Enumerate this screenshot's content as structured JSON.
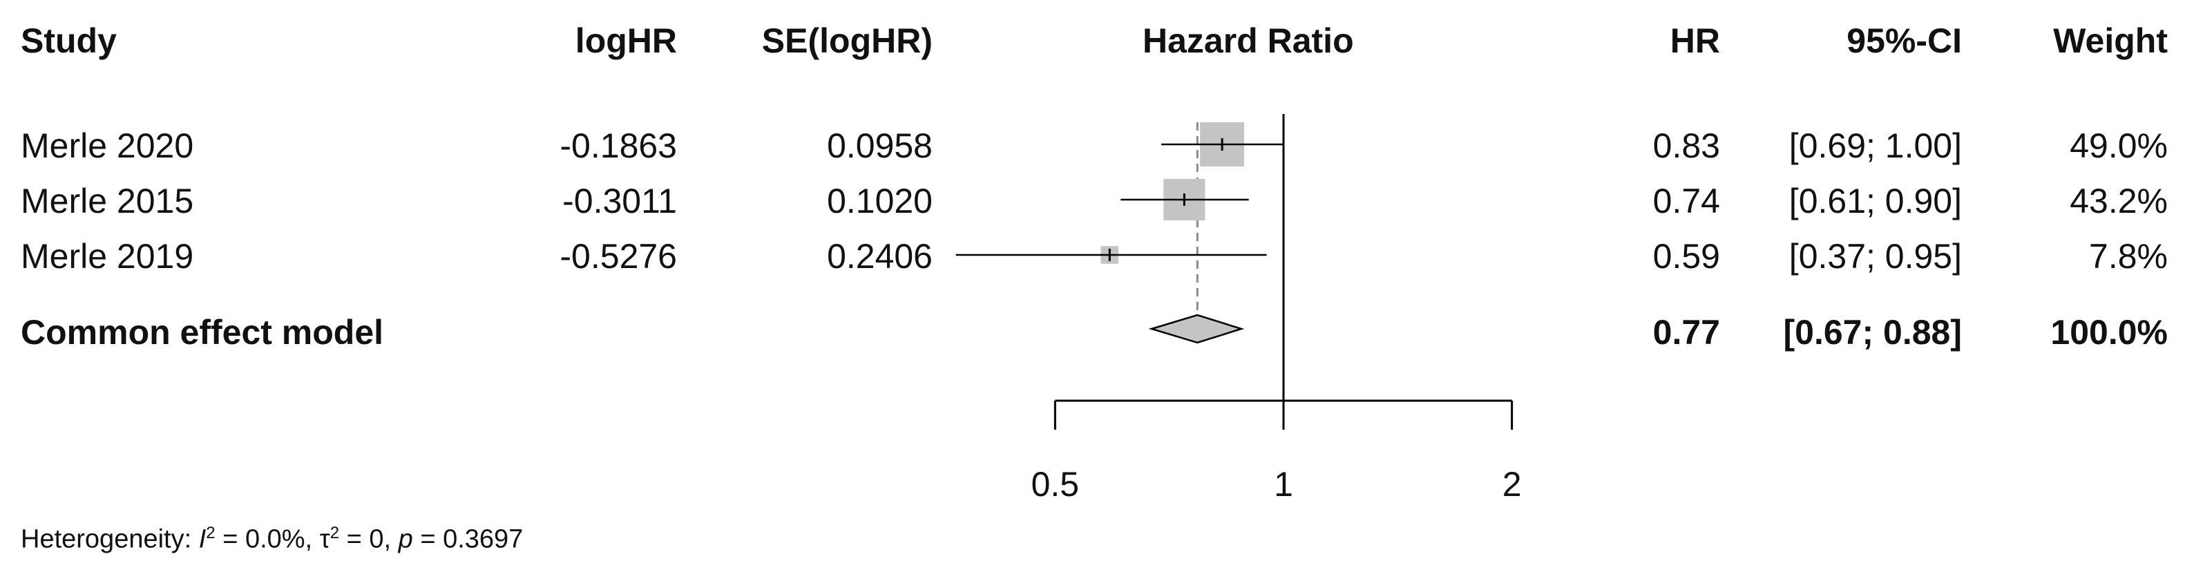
{
  "chart_data": {
    "type": "forest",
    "columns": {
      "study": "Study",
      "loghr": "logHR",
      "se": "SE(logHR)",
      "plot": "Hazard Ratio",
      "hr": "HR",
      "ci": "95%-CI",
      "weight": "Weight"
    },
    "studies": [
      {
        "name": "Merle 2020",
        "loghr": "-0.1863",
        "se": "0.0958",
        "hr": 0.83,
        "lower": 0.69,
        "upper": 1.0,
        "hr_text": "0.83",
        "ci_text": "[0.69; 1.00]",
        "weight_text": "49.0%",
        "weight": 49.0
      },
      {
        "name": "Merle 2015",
        "loghr": "-0.3011",
        "se": "0.1020",
        "hr": 0.74,
        "lower": 0.61,
        "upper": 0.9,
        "hr_text": "0.74",
        "ci_text": "[0.61; 0.90]",
        "weight_text": "43.2%",
        "weight": 43.2
      },
      {
        "name": "Merle 2019",
        "loghr": "-0.5276",
        "se": "0.2406",
        "hr": 0.59,
        "lower": 0.37,
        "upper": 0.95,
        "hr_text": "0.59",
        "ci_text": "[0.37; 0.95]",
        "weight_text": "7.8%",
        "weight": 7.8
      }
    ],
    "pooled": {
      "name": "Common effect model",
      "hr": 0.77,
      "lower": 0.67,
      "upper": 0.88,
      "hr_text": "0.77",
      "ci_text": "[0.67; 0.88]",
      "weight_text": "100.0%"
    },
    "x_scale": "log",
    "xlim": [
      0.5,
      2
    ],
    "xticks": [
      0.5,
      1,
      2
    ],
    "xtick_labels": [
      "0.5",
      "1",
      "2"
    ],
    "reference_line": 1,
    "heterogeneity": {
      "prefix": "Heterogeneity: ",
      "i2_symbol": "I",
      "i2_value": " = 0.0%, ",
      "tau2_symbol": "τ",
      "tau2_value": " = 0, ",
      "p_symbol": "p",
      "p_value": " = 0.3697"
    },
    "colors": {
      "square": "#c4c4c4",
      "diamond": "#c4c4c4",
      "line": "#000000",
      "dashed": "#8a8a8a"
    }
  }
}
